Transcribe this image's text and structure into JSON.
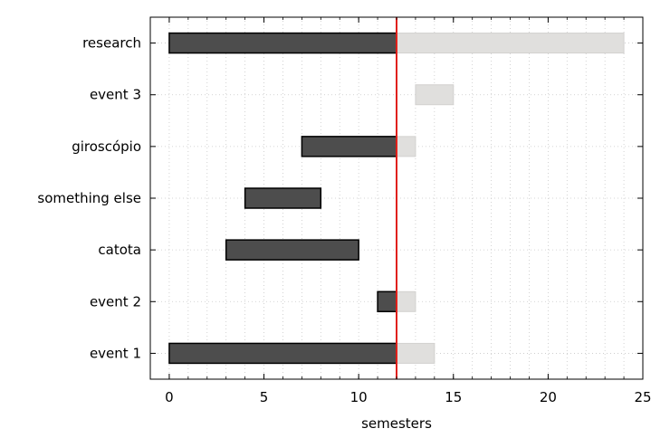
{
  "chart_data": {
    "type": "gantt",
    "xlabel": "semesters",
    "xlim": [
      -1,
      25
    ],
    "x_ticks": [
      0,
      5,
      10,
      15,
      20,
      25
    ],
    "x_minor_step": 1,
    "grid": "dotted",
    "current_marker": {
      "x": 12,
      "color": "#e0201b"
    },
    "colors": {
      "done": "#4d4d4d",
      "remaining": "#e0dfdd"
    },
    "tasks": [
      {
        "name": "research",
        "start": 0,
        "end": 24
      },
      {
        "name": "event 3",
        "start": 13,
        "end": 15
      },
      {
        "name": "giroscópio",
        "start": 7,
        "end": 13
      },
      {
        "name": "something else",
        "start": 4,
        "end": 8
      },
      {
        "name": "catota",
        "start": 3,
        "end": 10
      },
      {
        "name": "event 2",
        "start": 11,
        "end": 13
      },
      {
        "name": "event 1",
        "start": 0,
        "end": 14
      }
    ]
  }
}
